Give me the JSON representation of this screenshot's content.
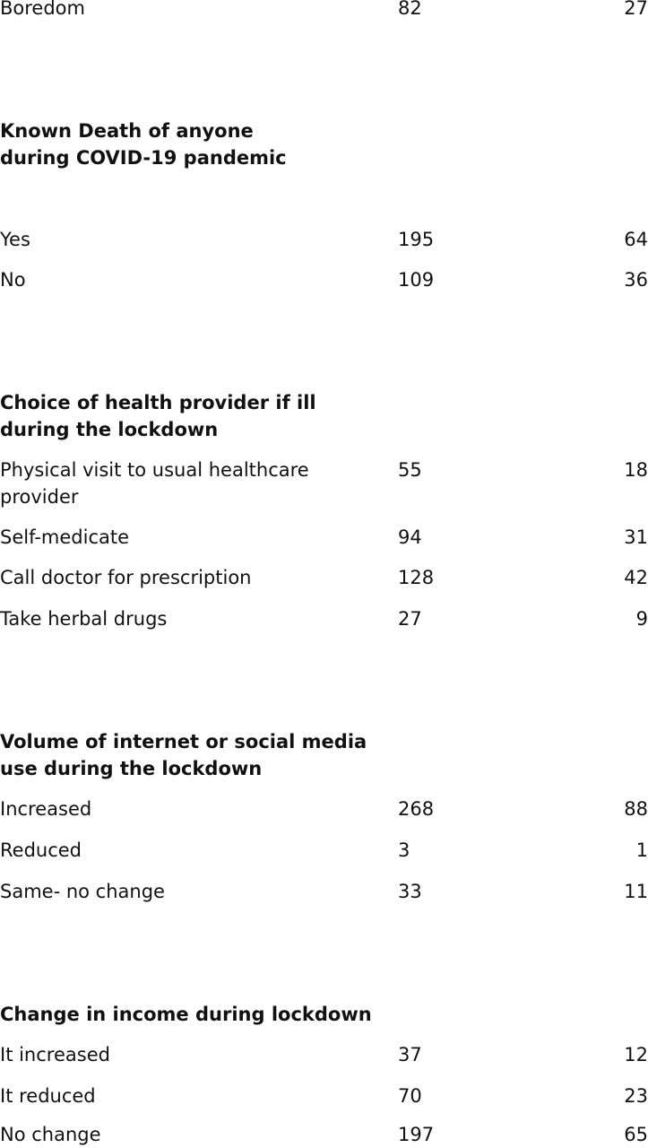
{
  "rows": {
    "boredom": {
      "label": "Boredom",
      "count": "82",
      "pct": "27"
    },
    "death_yes": {
      "label": "Yes",
      "count": "195",
      "pct": "64"
    },
    "death_no": {
      "label": "No",
      "count": "109",
      "pct": "36"
    },
    "prov_visit": {
      "label": "Physical visit to usual healthcare provider",
      "count": "55",
      "pct": "18"
    },
    "prov_self": {
      "label": "Self-medicate",
      "count": "94",
      "pct": "31"
    },
    "prov_call": {
      "label": "Call doctor for prescription",
      "count": "128",
      "pct": "42"
    },
    "prov_herbal": {
      "label": "Take herbal drugs",
      "count": "27",
      "pct": "9"
    },
    "net_inc": {
      "label": "Increased",
      "count": "268",
      "pct": "88"
    },
    "net_red": {
      "label": "Reduced",
      "count": "3",
      "pct": "1"
    },
    "net_same": {
      "label": "Same- no change",
      "count": "33",
      "pct": "11"
    },
    "inc_inc": {
      "label": "It increased",
      "count": "37",
      "pct": "12"
    },
    "inc_red": {
      "label": "It reduced",
      "count": "70",
      "pct": "23"
    },
    "inc_none": {
      "label": "No change",
      "count": "197",
      "pct": "65"
    }
  },
  "headings": {
    "death": "Known Death of anyone during COVID-19 pandemic",
    "provider": "Choice of health provider if ill during the lockdown",
    "internet": "Volume of internet or social media use during the lockdown",
    "income": "Change in income during lockdown"
  }
}
